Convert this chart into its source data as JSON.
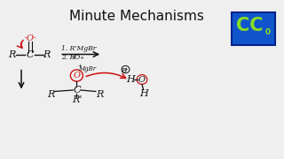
{
  "title": "Minute Mechanisms",
  "title_fontsize": 11,
  "background_color": "#efefef",
  "cc_box_color1": "#1155aa",
  "cc_box_color2": "#0044cc",
  "cc_text_color": "#88dd22",
  "text_color": "#111111",
  "red_color": "#cc1111",
  "xlim": [
    0,
    10
  ],
  "ylim": [
    0,
    6
  ]
}
